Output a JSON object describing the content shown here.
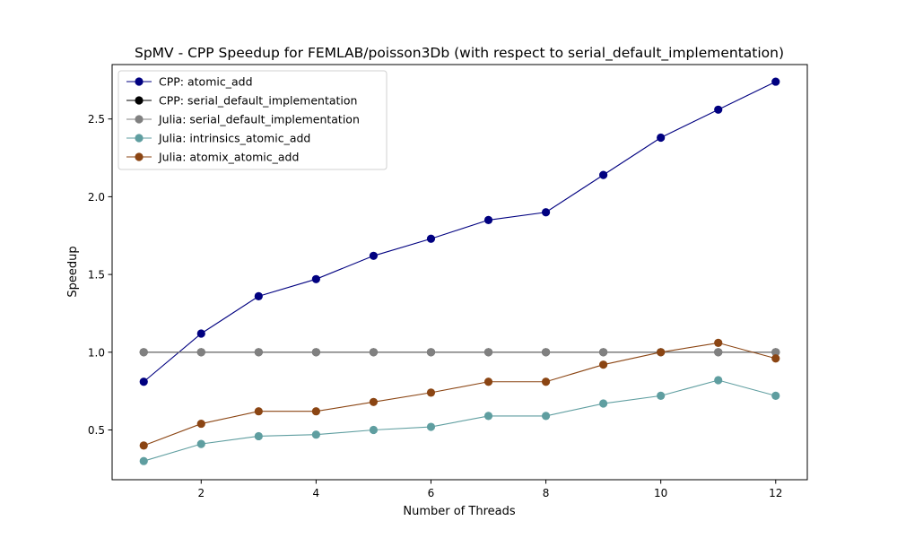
{
  "chart_data": {
    "type": "line",
    "title": "SpMV - CPP Speedup for FEMLAB/poisson3Db (with respect to serial_default_implementation)",
    "xlabel": "Number of Threads",
    "ylabel": "Speedup",
    "xlim": [
      0.45,
      12.55
    ],
    "ylim": [
      0.18,
      2.85
    ],
    "xticks": [
      2,
      4,
      6,
      8,
      10,
      12
    ],
    "yticks": [
      0.5,
      1.0,
      1.5,
      2.0,
      2.5
    ],
    "ytick_labels": [
      "0.5",
      "1.0",
      "1.5",
      "2.0",
      "2.5"
    ],
    "grid": false,
    "legend_position": "top-left",
    "x": [
      1,
      2,
      3,
      4,
      5,
      6,
      7,
      8,
      9,
      10,
      11,
      12
    ],
    "series": [
      {
        "name": "CPP: atomic_add",
        "color": "#000080",
        "values": [
          0.81,
          1.12,
          1.36,
          1.47,
          1.62,
          1.73,
          1.85,
          1.9,
          2.14,
          2.38,
          2.56,
          2.74
        ]
      },
      {
        "name": "CPP: serial_default_implementation",
        "color": "#000000",
        "values": [
          1.0,
          1.0,
          1.0,
          1.0,
          1.0,
          1.0,
          1.0,
          1.0,
          1.0,
          1.0,
          1.0,
          1.0
        ]
      },
      {
        "name": "Julia: serial_default_implementation",
        "color": "#808080",
        "values": [
          1.0,
          1.0,
          1.0,
          1.0,
          1.0,
          1.0,
          1.0,
          1.0,
          1.0,
          1.0,
          1.0,
          1.0
        ]
      },
      {
        "name": "Julia: intrinsics_atomic_add",
        "color": "#5f9ea0",
        "values": [
          0.3,
          0.41,
          0.46,
          0.47,
          0.5,
          0.52,
          0.59,
          0.59,
          0.67,
          0.72,
          0.82,
          0.72
        ]
      },
      {
        "name": "Julia: atomix_atomic_add",
        "color": "#8b4513",
        "values": [
          0.4,
          0.54,
          0.62,
          0.62,
          0.68,
          0.74,
          0.81,
          0.81,
          0.92,
          1.0,
          1.06,
          0.96
        ]
      }
    ]
  }
}
